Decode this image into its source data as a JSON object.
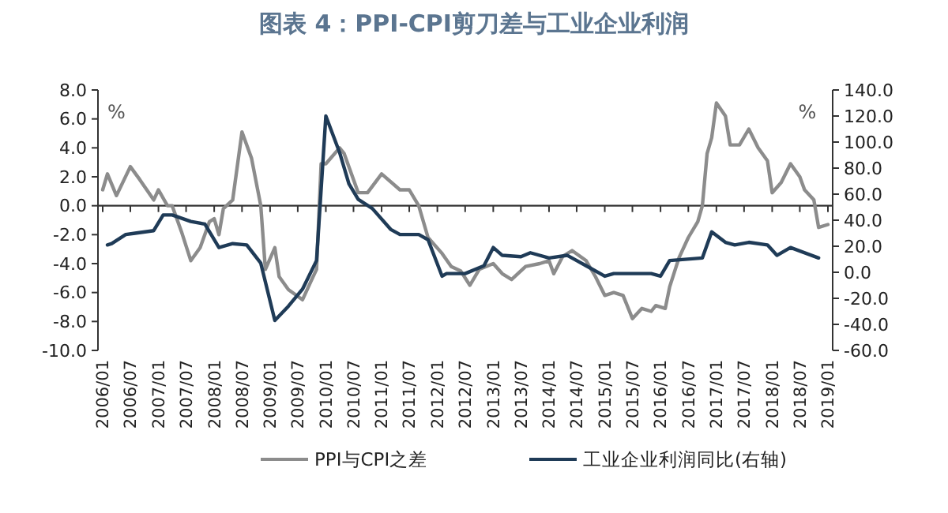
{
  "chart_data": {
    "type": "line",
    "title": "图表 4：PPI-CPI剪刀差与工业企业利润",
    "ylabel": "%",
    "y2label": "%",
    "xlim": [
      "2005-12",
      "2019-02"
    ],
    "xticks": [
      {
        "value": "2006-01",
        "label": "2006/01"
      },
      {
        "value": "2006-07",
        "label": "2006/07"
      },
      {
        "value": "2007-01",
        "label": "2007/01"
      },
      {
        "value": "2007-07",
        "label": "2007/07"
      },
      {
        "value": "2008-01",
        "label": "2008/01"
      },
      {
        "value": "2008-07",
        "label": "2008/07"
      },
      {
        "value": "2009-01",
        "label": "2009/01"
      },
      {
        "value": "2009-07",
        "label": "2009/07"
      },
      {
        "value": "2010-01",
        "label": "2010/01"
      },
      {
        "value": "2010-07",
        "label": "2010/07"
      },
      {
        "value": "2011-01",
        "label": "2011/01"
      },
      {
        "value": "2011-07",
        "label": "2011/07"
      },
      {
        "value": "2012-01",
        "label": "2012/01"
      },
      {
        "value": "2012-07",
        "label": "2012/07"
      },
      {
        "value": "2013-01",
        "label": "2013/01"
      },
      {
        "value": "2013-07",
        "label": "2013/07"
      },
      {
        "value": "2014-01",
        "label": "2014/01"
      },
      {
        "value": "2014-07",
        "label": "2014/07"
      },
      {
        "value": "2015-01",
        "label": "2015/01"
      },
      {
        "value": "2015-07",
        "label": "2015/07"
      },
      {
        "value": "2016-01",
        "label": "2016/01"
      },
      {
        "value": "2016-07",
        "label": "2016/07"
      },
      {
        "value": "2017-01",
        "label": "2017/01"
      },
      {
        "value": "2017-07",
        "label": "2017/07"
      },
      {
        "value": "2018-01",
        "label": "2018/01"
      },
      {
        "value": "2018-07",
        "label": "2018/07"
      },
      {
        "value": "2019-01",
        "label": "2019/01"
      }
    ],
    "ylim": [
      -10,
      8
    ],
    "yticks": [
      {
        "value": -10,
        "label": "-10.0"
      },
      {
        "value": -8,
        "label": "-8.0"
      },
      {
        "value": -6,
        "label": "-6.0"
      },
      {
        "value": -4,
        "label": "-4.0"
      },
      {
        "value": -2,
        "label": "-2.0"
      },
      {
        "value": 0,
        "label": "0.0"
      },
      {
        "value": 2,
        "label": "2.0"
      },
      {
        "value": 4,
        "label": "4.0"
      },
      {
        "value": 6,
        "label": "6.0"
      },
      {
        "value": 8,
        "label": "8.0"
      }
    ],
    "y2lim": [
      -60,
      140
    ],
    "y2ticks": [
      {
        "value": -60,
        "label": "-60.0"
      },
      {
        "value": -40,
        "label": "-40.0"
      },
      {
        "value": -20,
        "label": "-20.0"
      },
      {
        "value": 0,
        "label": "0.0"
      },
      {
        "value": 20,
        "label": "20.0"
      },
      {
        "value": 40,
        "label": "40.0"
      },
      {
        "value": 60,
        "label": "60.0"
      },
      {
        "value": 80,
        "label": "80.0"
      },
      {
        "value": 100,
        "label": "100.0"
      },
      {
        "value": 120,
        "label": "120.0"
      },
      {
        "value": 140,
        "label": "140.0"
      }
    ],
    "legend": "bottom",
    "marker": "none",
    "line_style": "solid",
    "series": [
      {
        "name": "PPI与CPI之差",
        "color": "#8c8c8c",
        "x": [
          "2006-01",
          "2006-02",
          "2006-04",
          "2006-07",
          "2006-09",
          "2006-12",
          "2007-01",
          "2007-03",
          "2007-04",
          "2007-06",
          "2007-08",
          "2007-10",
          "2007-12",
          "2008-01",
          "2008-02",
          "2008-03",
          "2008-05",
          "2008-07",
          "2008-09",
          "2008-11",
          "2008-12",
          "2009-02",
          "2009-03",
          "2009-05",
          "2009-08",
          "2009-10",
          "2009-11",
          "2009-12",
          "2010-01",
          "2010-04",
          "2010-05",
          "2010-08",
          "2010-10",
          "2011-01",
          "2011-05",
          "2011-07",
          "2011-09",
          "2011-11",
          "2012-02",
          "2012-04",
          "2012-06",
          "2012-08",
          "2012-10",
          "2013-01",
          "2013-03",
          "2013-05",
          "2013-08",
          "2013-11",
          "2014-01",
          "2014-02",
          "2014-04",
          "2014-06",
          "2014-09",
          "2014-11",
          "2015-01",
          "2015-03",
          "2015-05",
          "2015-07",
          "2015-09",
          "2015-11",
          "2015-12",
          "2016-02",
          "2016-03",
          "2016-05",
          "2016-07",
          "2016-09",
          "2016-10",
          "2016-11",
          "2016-12",
          "2017-01",
          "2017-03",
          "2017-04",
          "2017-06",
          "2017-08",
          "2017-10",
          "2017-12",
          "2018-01",
          "2018-03",
          "2018-05",
          "2018-07",
          "2018-08",
          "2018-10",
          "2018-11",
          "2019-01"
        ],
        "values": [
          1.1,
          2.2,
          0.7,
          2.7,
          1.8,
          0.4,
          1.1,
          0,
          0,
          -1.8,
          -3.8,
          -2.9,
          -1.1,
          -0.9,
          -2.0,
          -0.2,
          0.4,
          5.1,
          3.3,
          0,
          -4.4,
          -2.9,
          -4.9,
          -5.8,
          -6.5,
          -5.1,
          -4.4,
          2.9,
          2.9,
          4.0,
          3.6,
          0.9,
          0.9,
          2.2,
          1.1,
          1.1,
          0,
          -2.2,
          -3.3,
          -4.2,
          -4.5,
          -5.5,
          -4.4,
          -4.0,
          -4.7,
          -5.1,
          -4.2,
          -4.0,
          -3.8,
          -4.7,
          -3.5,
          -3.1,
          -3.8,
          -4.9,
          -6.2,
          -6.0,
          -6.2,
          -7.8,
          -7.1,
          -7.3,
          -6.9,
          -7.1,
          -5.6,
          -3.6,
          -2.2,
          -1.1,
          0,
          3.6,
          4.7,
          7.1,
          6.2,
          4.2,
          4.2,
          5.3,
          4.0,
          3.1,
          0.9,
          1.6,
          2.9,
          2.0,
          1.1,
          0.4,
          -1.5,
          -1.3
        ]
      },
      {
        "name": "工业企业利润同比(右轴)",
        "color": "#1f3b57",
        "axis": "y2",
        "x": [
          "2006-02",
          "2006-03",
          "2006-06",
          "2006-08",
          "2006-12",
          "2007-02",
          "2007-04",
          "2007-08",
          "2007-11",
          "2008-02",
          "2008-05",
          "2008-08",
          "2008-11",
          "2009-02",
          "2009-05",
          "2009-08",
          "2009-11",
          "2010-01",
          "2010-04",
          "2010-06",
          "2010-08",
          "2010-11",
          "2011-03",
          "2011-05",
          "2011-09",
          "2011-11",
          "2012-02",
          "2012-03",
          "2012-07",
          "2012-11",
          "2013-01",
          "2013-03",
          "2013-07",
          "2013-09",
          "2014-01",
          "2014-05",
          "2014-07",
          "2014-09",
          "2015-01",
          "2015-03",
          "2015-04",
          "2015-11",
          "2016-01",
          "2016-03",
          "2016-10",
          "2016-12",
          "2017-03",
          "2017-05",
          "2017-08",
          "2017-12",
          "2018-02",
          "2018-05",
          "2018-11"
        ],
        "values": [
          21,
          22,
          29,
          30,
          32,
          44,
          44,
          39,
          37,
          19,
          22,
          21,
          7,
          -37,
          -26,
          -13,
          9,
          120,
          92,
          68,
          56,
          49,
          33,
          29,
          29,
          25,
          -3,
          -1,
          -1,
          5,
          19,
          13,
          12,
          15,
          11,
          13,
          9,
          5,
          -3,
          -1,
          -1,
          -1,
          -3,
          9,
          11,
          31,
          23,
          21,
          23,
          21,
          13,
          19,
          11
        ]
      }
    ]
  }
}
